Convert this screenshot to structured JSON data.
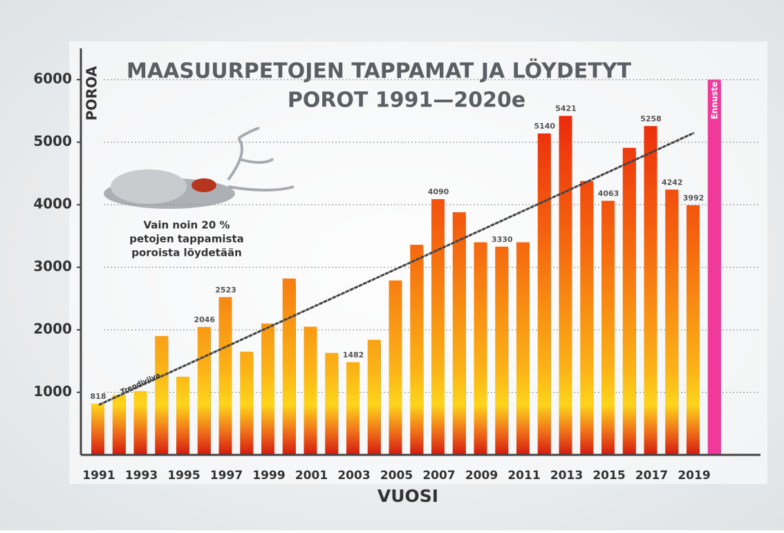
{
  "chart_data": {
    "type": "bar",
    "title": [
      "MAASUURPETOJEN TAPPAMAT JA LÖYDETYT",
      "POROT 1991—2020e"
    ],
    "y_label": "POROA",
    "x_label": "VUOSI",
    "categories": [
      "1991",
      null,
      "1993",
      null,
      "1995",
      null,
      "1997",
      null,
      "1999",
      null,
      "2001",
      null,
      "2003",
      null,
      "2005",
      null,
      "2007",
      null,
      "2009",
      null,
      "2011",
      null,
      "2013",
      null,
      "2015",
      null,
      "2017",
      null,
      "2019",
      null
    ],
    "values": [
      818,
      960,
      1020,
      1900,
      1250,
      2046,
      2523,
      1650,
      2100,
      2820,
      2050,
      1630,
      1482,
      1840,
      2790,
      3360,
      4090,
      3880,
      3400,
      3330,
      3400,
      5140,
      5421,
      4380,
      4063,
      4910,
      5258,
      4242,
      3992,
      6000
    ],
    "value_labels": [
      "818",
      null,
      null,
      null,
      null,
      "2046",
      "2523",
      null,
      null,
      null,
      null,
      null,
      "1482",
      null,
      null,
      null,
      "4090",
      null,
      null,
      "3330",
      null,
      "5140",
      "5421",
      null,
      "4063",
      null,
      "5258",
      "4242",
      "3992",
      "Ennuste"
    ],
    "forecast_color": "#f0399a",
    "ylim": [
      0,
      6500
    ],
    "yticks": [
      1000,
      2000,
      3000,
      4000,
      5000,
      6000
    ],
    "grid": true,
    "trend": {
      "label": "Trendiviiva",
      "values": [
        800,
        5150
      ]
    },
    "annotation": [
      "Vain noin 20 %",
      "petojen tappamista",
      "poroista löydetään"
    ]
  }
}
